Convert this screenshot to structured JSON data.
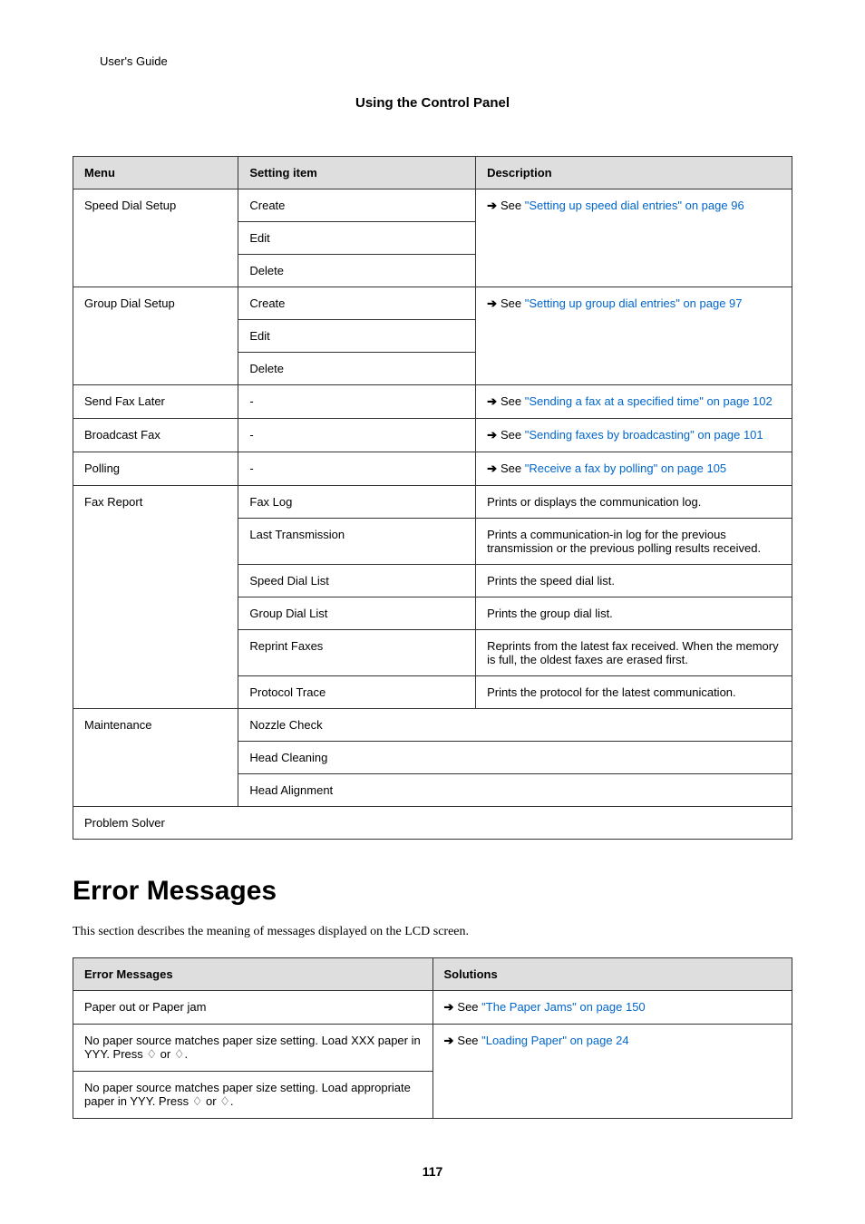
{
  "header": {
    "breadcrumb": "User's Guide",
    "section": "Using the Control Panel"
  },
  "table1": {
    "headers": {
      "menu": "Menu",
      "setting": "Setting item",
      "desc": "Description"
    },
    "speed_dial": {
      "menu": "Speed Dial Setup",
      "r1": "Create",
      "r2": "Edit",
      "r3": "Delete",
      "desc_prefix": "See ",
      "desc_link": "\"Setting up speed dial entries\" on page 96"
    },
    "group_dial": {
      "menu": "Group Dial Setup",
      "r1": "Create",
      "r2": "Edit",
      "r3": "Delete",
      "desc_prefix": "See ",
      "desc_link": "\"Setting up group dial entries\" on page 97"
    },
    "send_fax": {
      "menu": "Send Fax Later",
      "setting": "-",
      "desc_prefix": "See ",
      "desc_link": "\"Sending a fax at a specified time\" on page 102"
    },
    "broadcast": {
      "menu": "Broadcast Fax",
      "setting": "-",
      "desc_prefix": "See ",
      "desc_link": "\"Sending faxes by broadcasting\" on page 101"
    },
    "polling": {
      "menu": "Polling",
      "setting": "-",
      "desc_prefix": "See ",
      "desc_link": "\"Receive a fax by polling\" on page 105"
    },
    "fax_report": {
      "menu": "Fax Report",
      "r1s": "Fax Log",
      "r1d": "Prints or displays the communication log.",
      "r2s": "Last Transmission",
      "r2d": "Prints a communication-in log for the previous transmission or the previous polling results received.",
      "r3s": "Speed Dial List",
      "r3d": "Prints the speed dial list.",
      "r4s": "Group Dial List",
      "r4d": "Prints the group dial list.",
      "r5s": "Reprint Faxes",
      "r5d": "Reprints from the latest fax received. When the memory is full, the oldest faxes are erased first.",
      "r6s": "Protocol Trace",
      "r6d": "Prints the protocol for the latest communication."
    },
    "maintenance": {
      "menu": "Maintenance",
      "r1": "Nozzle Check",
      "r2": "Head Cleaning",
      "r3": "Head Alignment"
    },
    "problem_solver": "Problem Solver"
  },
  "heading": "Error Messages",
  "intro": "This section describes the meaning of messages displayed on the LCD screen.",
  "table2": {
    "headers": {
      "err": "Error Messages",
      "sol": "Solutions"
    },
    "r1": {
      "err": "Paper out or Paper jam",
      "sol_prefix": "See ",
      "sol_link": "\"The Paper Jams\" on page 150"
    },
    "r2": {
      "err": "No paper source matches paper size setting. Load XXX paper in YYY. Press ♢ or ♢.",
      "sol_prefix": "See ",
      "sol_link": "\"Loading Paper\" on page 24"
    },
    "r3": {
      "err": "No paper source matches paper size setting. Load appropriate paper in YYY. Press ♢ or ♢."
    }
  },
  "page_number": "117"
}
